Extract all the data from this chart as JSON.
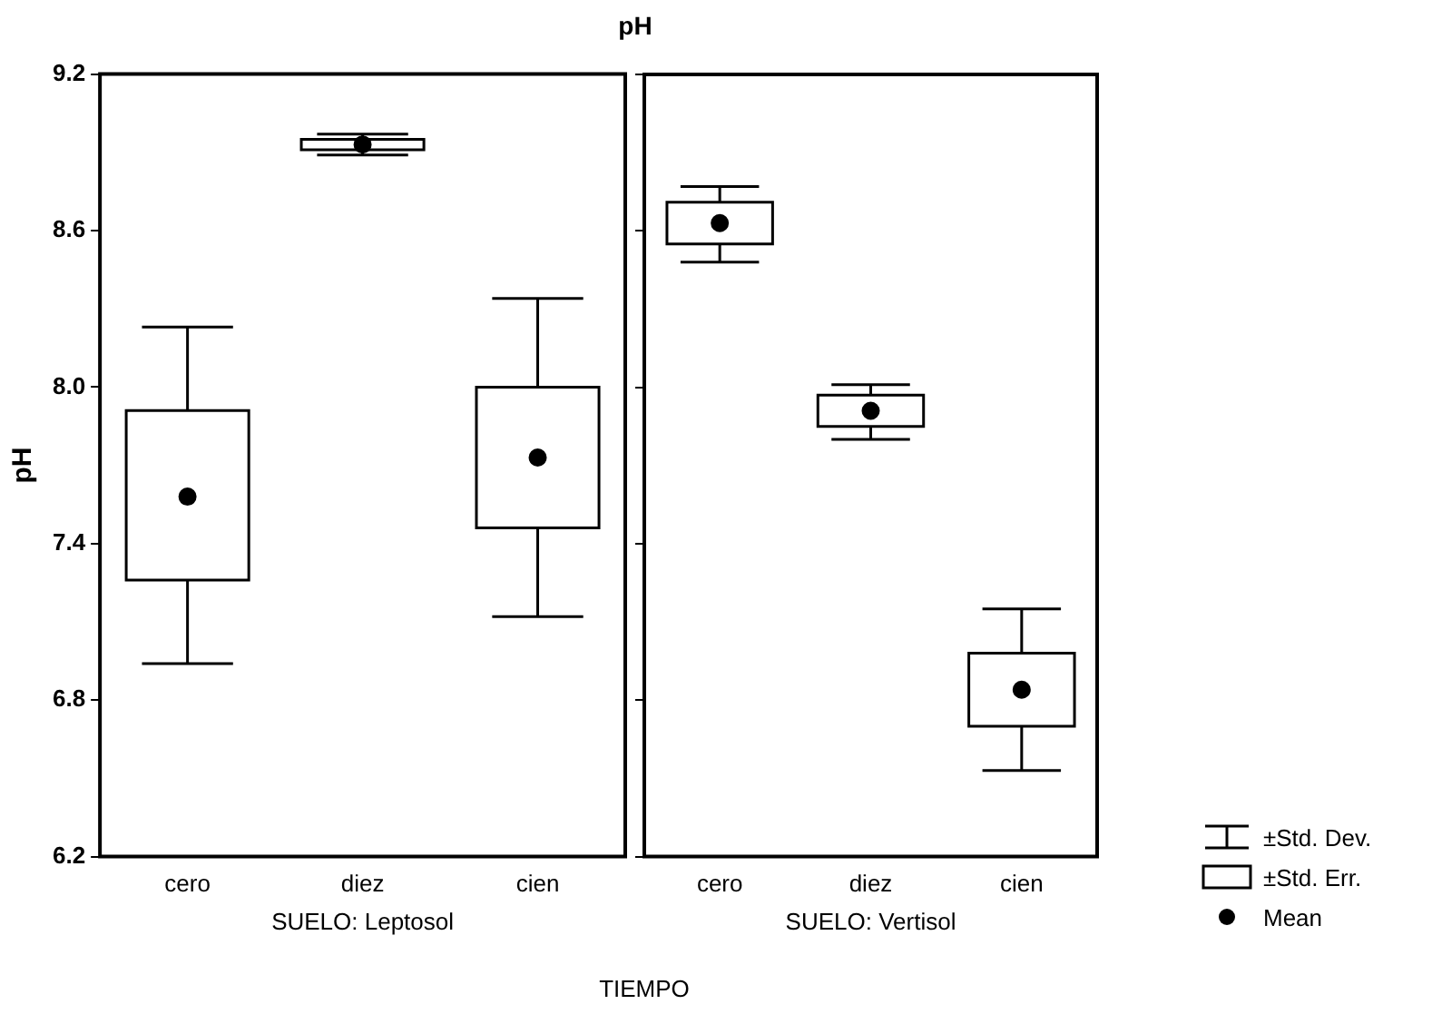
{
  "chart_data": [
    {
      "type": "box",
      "title": "pH",
      "ylabel": "pH",
      "xlabel": "SUELO: Leptosol",
      "categories": [
        "cero",
        "diez",
        "cien"
      ],
      "ylim": [
        6.2,
        9.2
      ],
      "yticks": [
        6.2,
        6.8,
        7.4,
        {
          "value": 8,
          "label": "8.0"
        },
        8.6,
        9.2
      ],
      "grid": false,
      "annotations": [
        "TIEMPO"
      ],
      "boxes": [
        {
          "low": 6.94,
          "q1": 7.26,
          "median": 7.58,
          "q3": 7.91,
          "high": 8.23
        },
        {
          "low": 8.89,
          "q1": 8.91,
          "median": 8.93,
          "q3": 8.95,
          "high": 8.97
        },
        {
          "low": 7.12,
          "q1": 7.46,
          "median": 7.73,
          "q3": 8.0,
          "high": 8.34
        }
      ]
    },
    {
      "type": "box",
      "xlabel": "SUELO: Vertisol",
      "categories": [
        "cero",
        "diez",
        "cien"
      ],
      "ylim": [
        6.2,
        9.2
      ],
      "yticks": [
        6.2,
        6.8,
        7.4,
        8,
        8.6,
        9.2
      ],
      "grid": false,
      "tick_labels": "x",
      "annotations": [
        "±Std. Dev.",
        "±Std. Err.",
        "Mean"
      ],
      "boxes": [
        {
          "low": 8.48,
          "q1": 8.55,
          "median": 8.63,
          "q3": 8.71,
          "high": 8.77
        },
        {
          "low": 7.8,
          "q1": 7.85,
          "median": 7.91,
          "q3": 7.97,
          "high": 8.01
        },
        {
          "low": 6.53,
          "q1": 6.7,
          "median": 6.84,
          "q3": 6.98,
          "high": 7.15
        }
      ]
    }
  ]
}
